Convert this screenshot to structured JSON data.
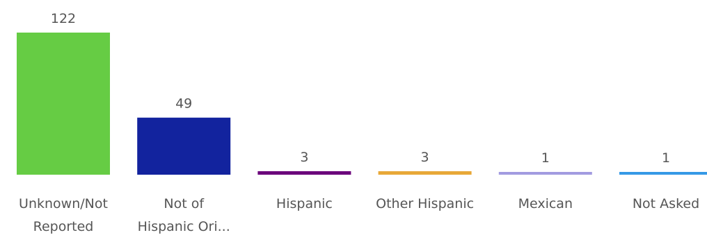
{
  "chart_data": {
    "type": "bar",
    "categories": [
      [
        "Unknown/Not",
        "Reported"
      ],
      [
        "Not of",
        "Hispanic Ori..."
      ],
      [
        "Hispanic"
      ],
      [
        "Other Hispanic"
      ],
      [
        "Mexican"
      ],
      [
        "Not Asked"
      ]
    ],
    "values": [
      122,
      49,
      3,
      3,
      1,
      1
    ],
    "value_labels": [
      "122",
      "49",
      "3",
      "3",
      "1",
      "1"
    ],
    "colors": [
      "#66CC44",
      "#12239E",
      "#6B007B",
      "#E8A838",
      "#A29BE0",
      "#3599E6"
    ],
    "title": "",
    "xlabel": "",
    "ylabel": "",
    "ylim": [
      0,
      122
    ],
    "grid": false,
    "legend": "none"
  }
}
